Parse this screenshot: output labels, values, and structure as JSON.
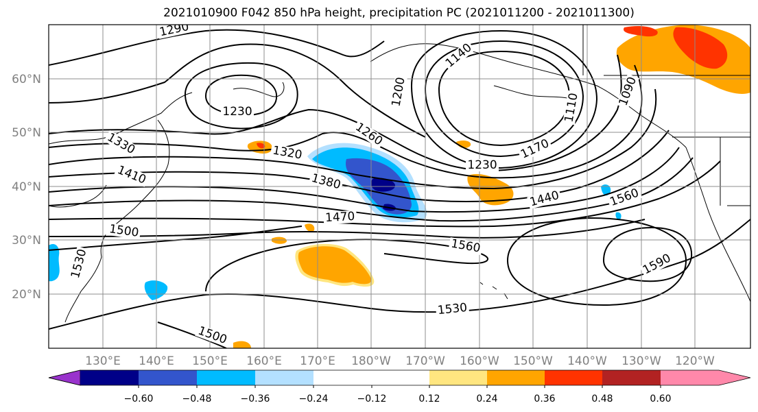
{
  "title": "2021010900 F042 850 hPa height, precipitation PC (2021011200 - 2021011300)",
  "lat_labels": [
    "60°N",
    "50°N",
    "40°N",
    "30°N",
    "20°N"
  ],
  "lon_labels": [
    "130°E",
    "140°E",
    "150°E",
    "160°E",
    "170°E",
    "180°W",
    "170°W",
    "160°W",
    "150°W",
    "140°W",
    "130°W",
    "120°W"
  ],
  "contour_labels": [
    "1290",
    "1230",
    "1330",
    "1410",
    "1320",
    "1260",
    "1200",
    "1140",
    "1110",
    "1170",
    "1230",
    "1380",
    "1470",
    "1500",
    "1530",
    "1440",
    "1560",
    "1560",
    "1590",
    "1530",
    "1500",
    "1090"
  ],
  "colorbar": {
    "colors": [
      "#9933cc",
      "#000088",
      "#3355cc",
      "#00bbff",
      "#b3e0ff",
      "#ffffff",
      "#ffffff",
      "#ffe680",
      "#ffa500",
      "#ff3300",
      "#b22222",
      "#ff88aa"
    ],
    "tick_labels": [
      "−0.60",
      "−0.48",
      "−0.36",
      "−0.24",
      "−0.12",
      "0.12",
      "0.24",
      "0.36",
      "0.48",
      "0.60"
    ]
  }
}
